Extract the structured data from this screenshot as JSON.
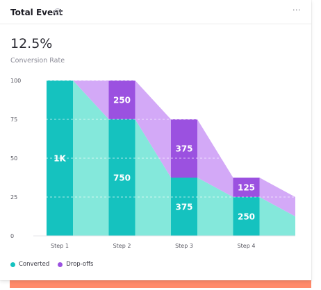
{
  "card": {
    "title": "Total Event",
    "help_icon": "question-circle-icon",
    "menu_icon": "more-horizontal-icon",
    "menu_glyph": "···",
    "help_glyph": "?"
  },
  "summary": {
    "value": "12.5%",
    "label": "Conversion Rate"
  },
  "colors": {
    "converted": "#15c2bf",
    "converted_light": "#84e8db",
    "dropoff": "#9b51e0",
    "dropoff_light": "#d3a9f7",
    "shadow": "#ff8a6a"
  },
  "chart_data": {
    "type": "bar",
    "title": "",
    "xlabel": "",
    "ylabel": "",
    "ylim": [
      0,
      100
    ],
    "yticks": [
      "0",
      "25",
      "50",
      "75",
      "100"
    ],
    "categories": [
      "Step 1",
      "Step 2",
      "Step 3",
      "Step 4"
    ],
    "series": [
      {
        "name": "Converted",
        "values": [
          100,
          75,
          37.5,
          25
        ],
        "labels": [
          "1K",
          "750",
          "375",
          "250"
        ]
      },
      {
        "name": "Drop-offs",
        "values": [
          0,
          25,
          37.5,
          12.5
        ],
        "labels": [
          "",
          "250",
          "375",
          "125"
        ]
      }
    ],
    "trailing_area": {
      "converted_end": 12.5,
      "dropoff_end": 25
    },
    "grid": true,
    "legend_position": "bottom-left"
  }
}
